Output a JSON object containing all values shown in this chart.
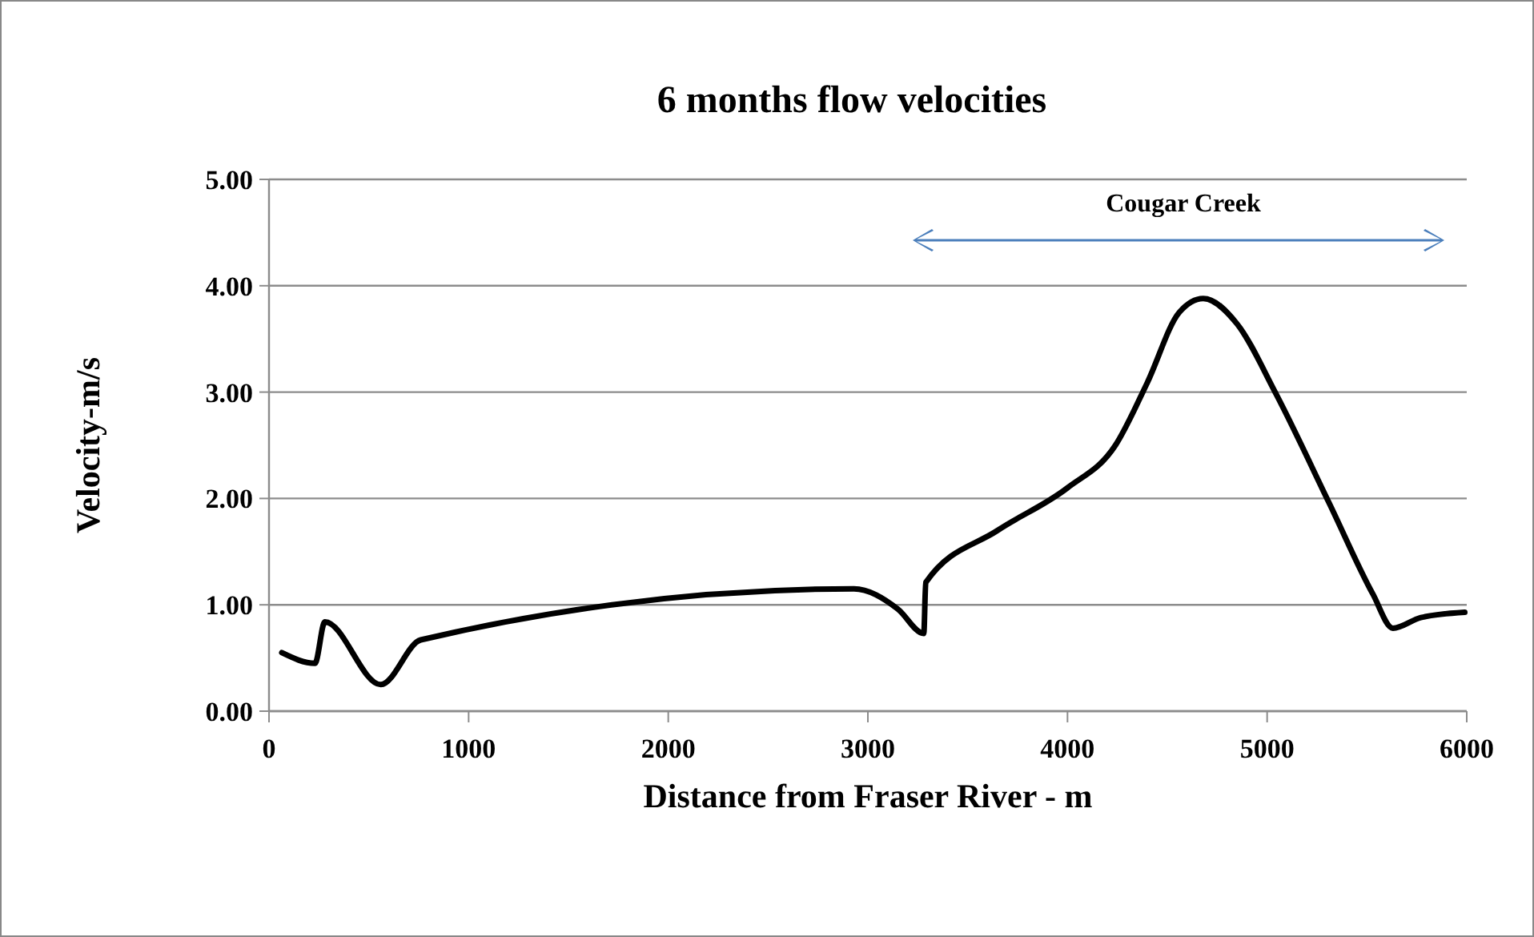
{
  "chart_data": {
    "type": "line",
    "title": "6 months flow velocities",
    "xlabel": "Distance from Fraser River - m",
    "ylabel": "Velocity-m/s",
    "annotations": [
      "Cougar Creek"
    ],
    "x": [
      64,
      230,
      280,
      560,
      760,
      2930,
      3150,
      3280,
      3290,
      3650,
      4000,
      4240,
      4400,
      4560,
      4680,
      4850,
      5040,
      5310,
      5530,
      5630,
      5770,
      5990
    ],
    "series": [
      {
        "color": "#000000",
        "values": [
          0.55,
          0.45,
          0.84,
          0.25,
          0.67,
          1.15,
          0.96,
          0.73,
          1.21,
          1.7,
          2.1,
          2.5,
          3.09,
          3.75,
          3.88,
          3.64,
          3.0,
          1.96,
          1.1,
          0.78,
          0.88,
          0.93
        ]
      }
    ],
    "xlim": [
      0,
      6000
    ],
    "xticks": [
      0,
      1000,
      2000,
      3000,
      4000,
      5000,
      6000
    ],
    "ylim": [
      0,
      5
    ],
    "yticks": [
      {
        "value": 0,
        "label": "0.00"
      },
      {
        "value": 1,
        "label": "1.00"
      },
      {
        "value": 2,
        "label": "2.00"
      },
      {
        "value": 3,
        "label": "3.00"
      },
      {
        "value": 4,
        "label": "4.00"
      },
      {
        "value": 5,
        "label": "5.00"
      }
    ],
    "grid": "y",
    "marker": "none",
    "line_style": "solid"
  }
}
